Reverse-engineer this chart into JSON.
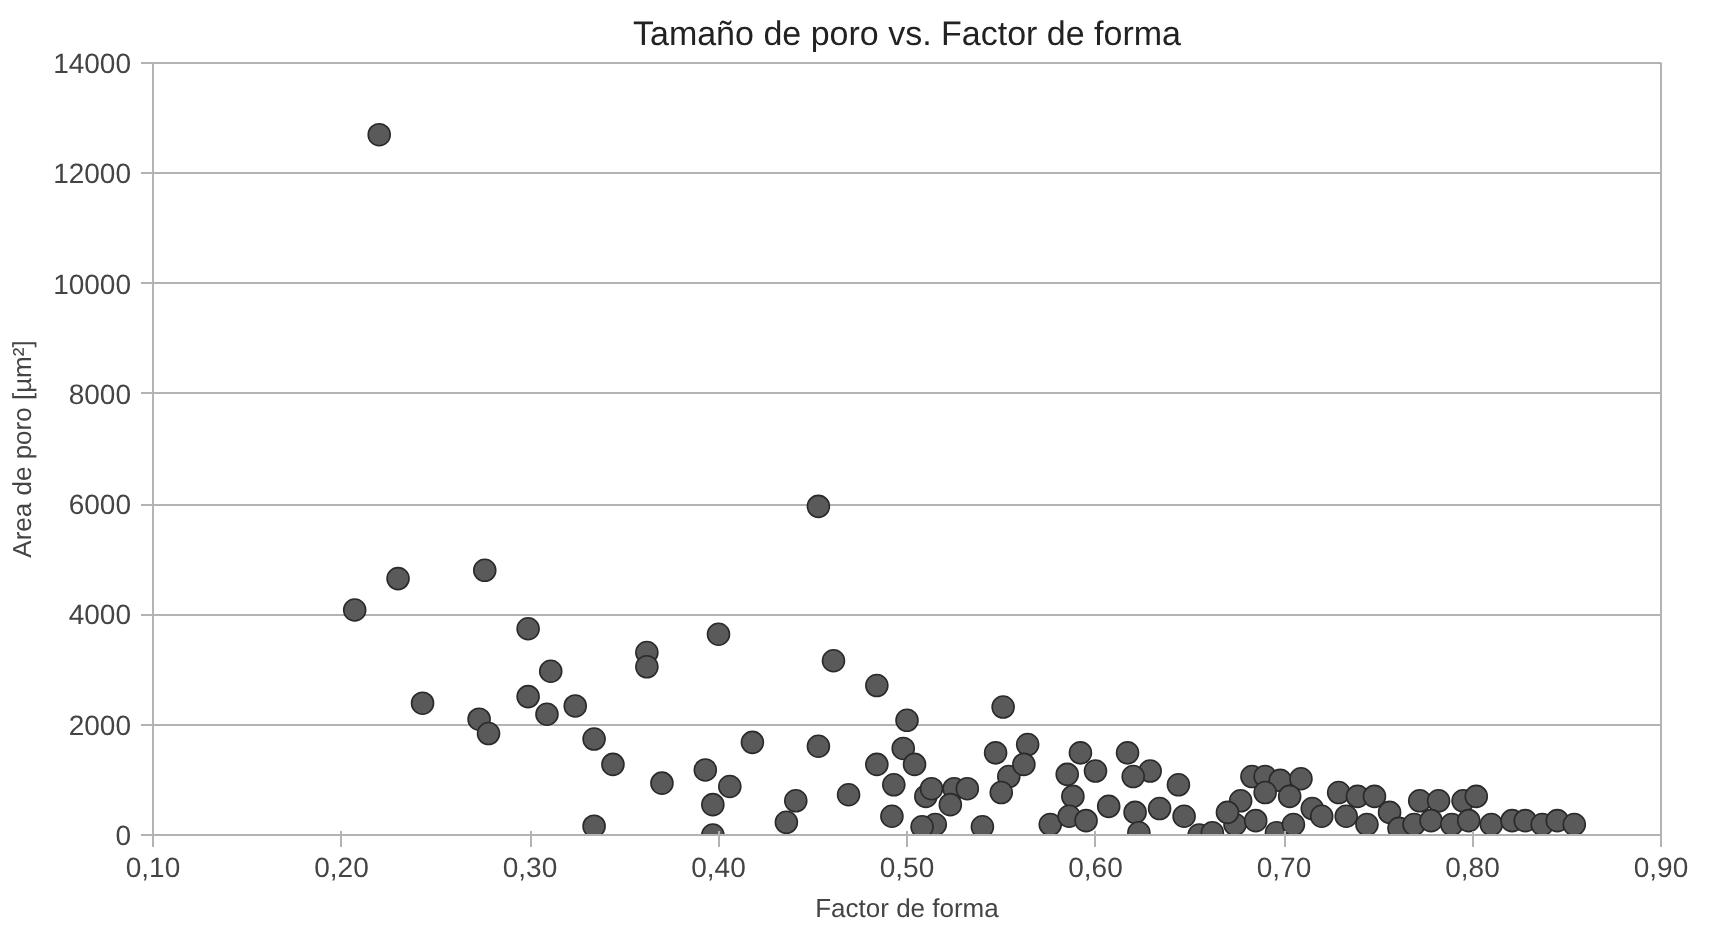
{
  "chart_data": {
    "type": "scatter",
    "title": "Tamaño de poro vs. Factor de forma",
    "xlabel": "Factor de forma",
    "ylabel": "Area de poro [µm²]",
    "xlim": [
      0.1,
      0.9
    ],
    "ylim": [
      0,
      14000
    ],
    "xticks": [
      {
        "value": 0.1,
        "label": "0,10"
      },
      {
        "value": 0.2,
        "label": "0,20"
      },
      {
        "value": 0.3,
        "label": "0,30"
      },
      {
        "value": 0.4,
        "label": "0,40"
      },
      {
        "value": 0.5,
        "label": "0,50"
      },
      {
        "value": 0.6,
        "label": "0,60"
      },
      {
        "value": 0.7,
        "label": "0,70"
      },
      {
        "value": 0.8,
        "label": "0,80"
      },
      {
        "value": 0.9,
        "label": "0,90"
      }
    ],
    "yticks": [
      0,
      2000,
      4000,
      6000,
      8000,
      10000,
      12000,
      14000
    ],
    "grid": "y",
    "marker": "circle",
    "series": [
      {
        "color": "#5a5a5a",
        "x": [
          0.22,
          0.207,
          0.23,
          0.276,
          0.299,
          0.311,
          0.243,
          0.299,
          0.309,
          0.324,
          0.273,
          0.278,
          0.334,
          0.344,
          0.37,
          0.334,
          0.362,
          0.362,
          0.4,
          0.393,
          0.406,
          0.397,
          0.397,
          0.418,
          0.453,
          0.461,
          0.484,
          0.5,
          0.453,
          0.551,
          0.484,
          0.498,
          0.504,
          0.493,
          0.441,
          0.436,
          0.469,
          0.492,
          0.51,
          0.513,
          0.525,
          0.532,
          0.523,
          0.515,
          0.508,
          0.54,
          0.547,
          0.564,
          0.554,
          0.55,
          0.562,
          0.576,
          0.585,
          0.592,
          0.6,
          0.588,
          0.586,
          0.595,
          0.607,
          0.617,
          0.629,
          0.62,
          0.644,
          0.621,
          0.634,
          0.647,
          0.623,
          0.655,
          0.683,
          0.69,
          0.698,
          0.709,
          0.677,
          0.69,
          0.703,
          0.715,
          0.674,
          0.685,
          0.696,
          0.705,
          0.72,
          0.729,
          0.739,
          0.748,
          0.733,
          0.744,
          0.756,
          0.761,
          0.772,
          0.782,
          0.795,
          0.802,
          0.769,
          0.778,
          0.789,
          0.798,
          0.81,
          0.821,
          0.828,
          0.837,
          0.845,
          0.854,
          0.662,
          0.67
        ],
        "values": [
          12700,
          4080,
          4650,
          4800,
          3740,
          2970,
          2390,
          2510,
          2190,
          2340,
          2100,
          1840,
          1740,
          1280,
          940,
          160,
          3310,
          3050,
          3640,
          1180,
          880,
          550,
          0,
          1680,
          5960,
          3160,
          2710,
          2080,
          1610,
          2320,
          1280,
          1570,
          1280,
          910,
          620,
          230,
          730,
          340,
          700,
          840,
          840,
          840,
          550,
          190,
          150,
          150,
          1490,
          1640,
          1060,
          770,
          1280,
          190,
          1100,
          1490,
          1160,
          700,
          340,
          260,
          520,
          1490,
          1160,
          1060,
          910,
          410,
          480,
          340,
          40,
          0,
          1060,
          1060,
          990,
          1020,
          620,
          770,
          700,
          480,
          190,
          260,
          40,
          190,
          340,
          770,
          700,
          700,
          340,
          190,
          410,
          120,
          620,
          620,
          620,
          700,
          190,
          260,
          190,
          260,
          190,
          260,
          260,
          190,
          260,
          190,
          40,
          410
        ]
      }
    ]
  }
}
